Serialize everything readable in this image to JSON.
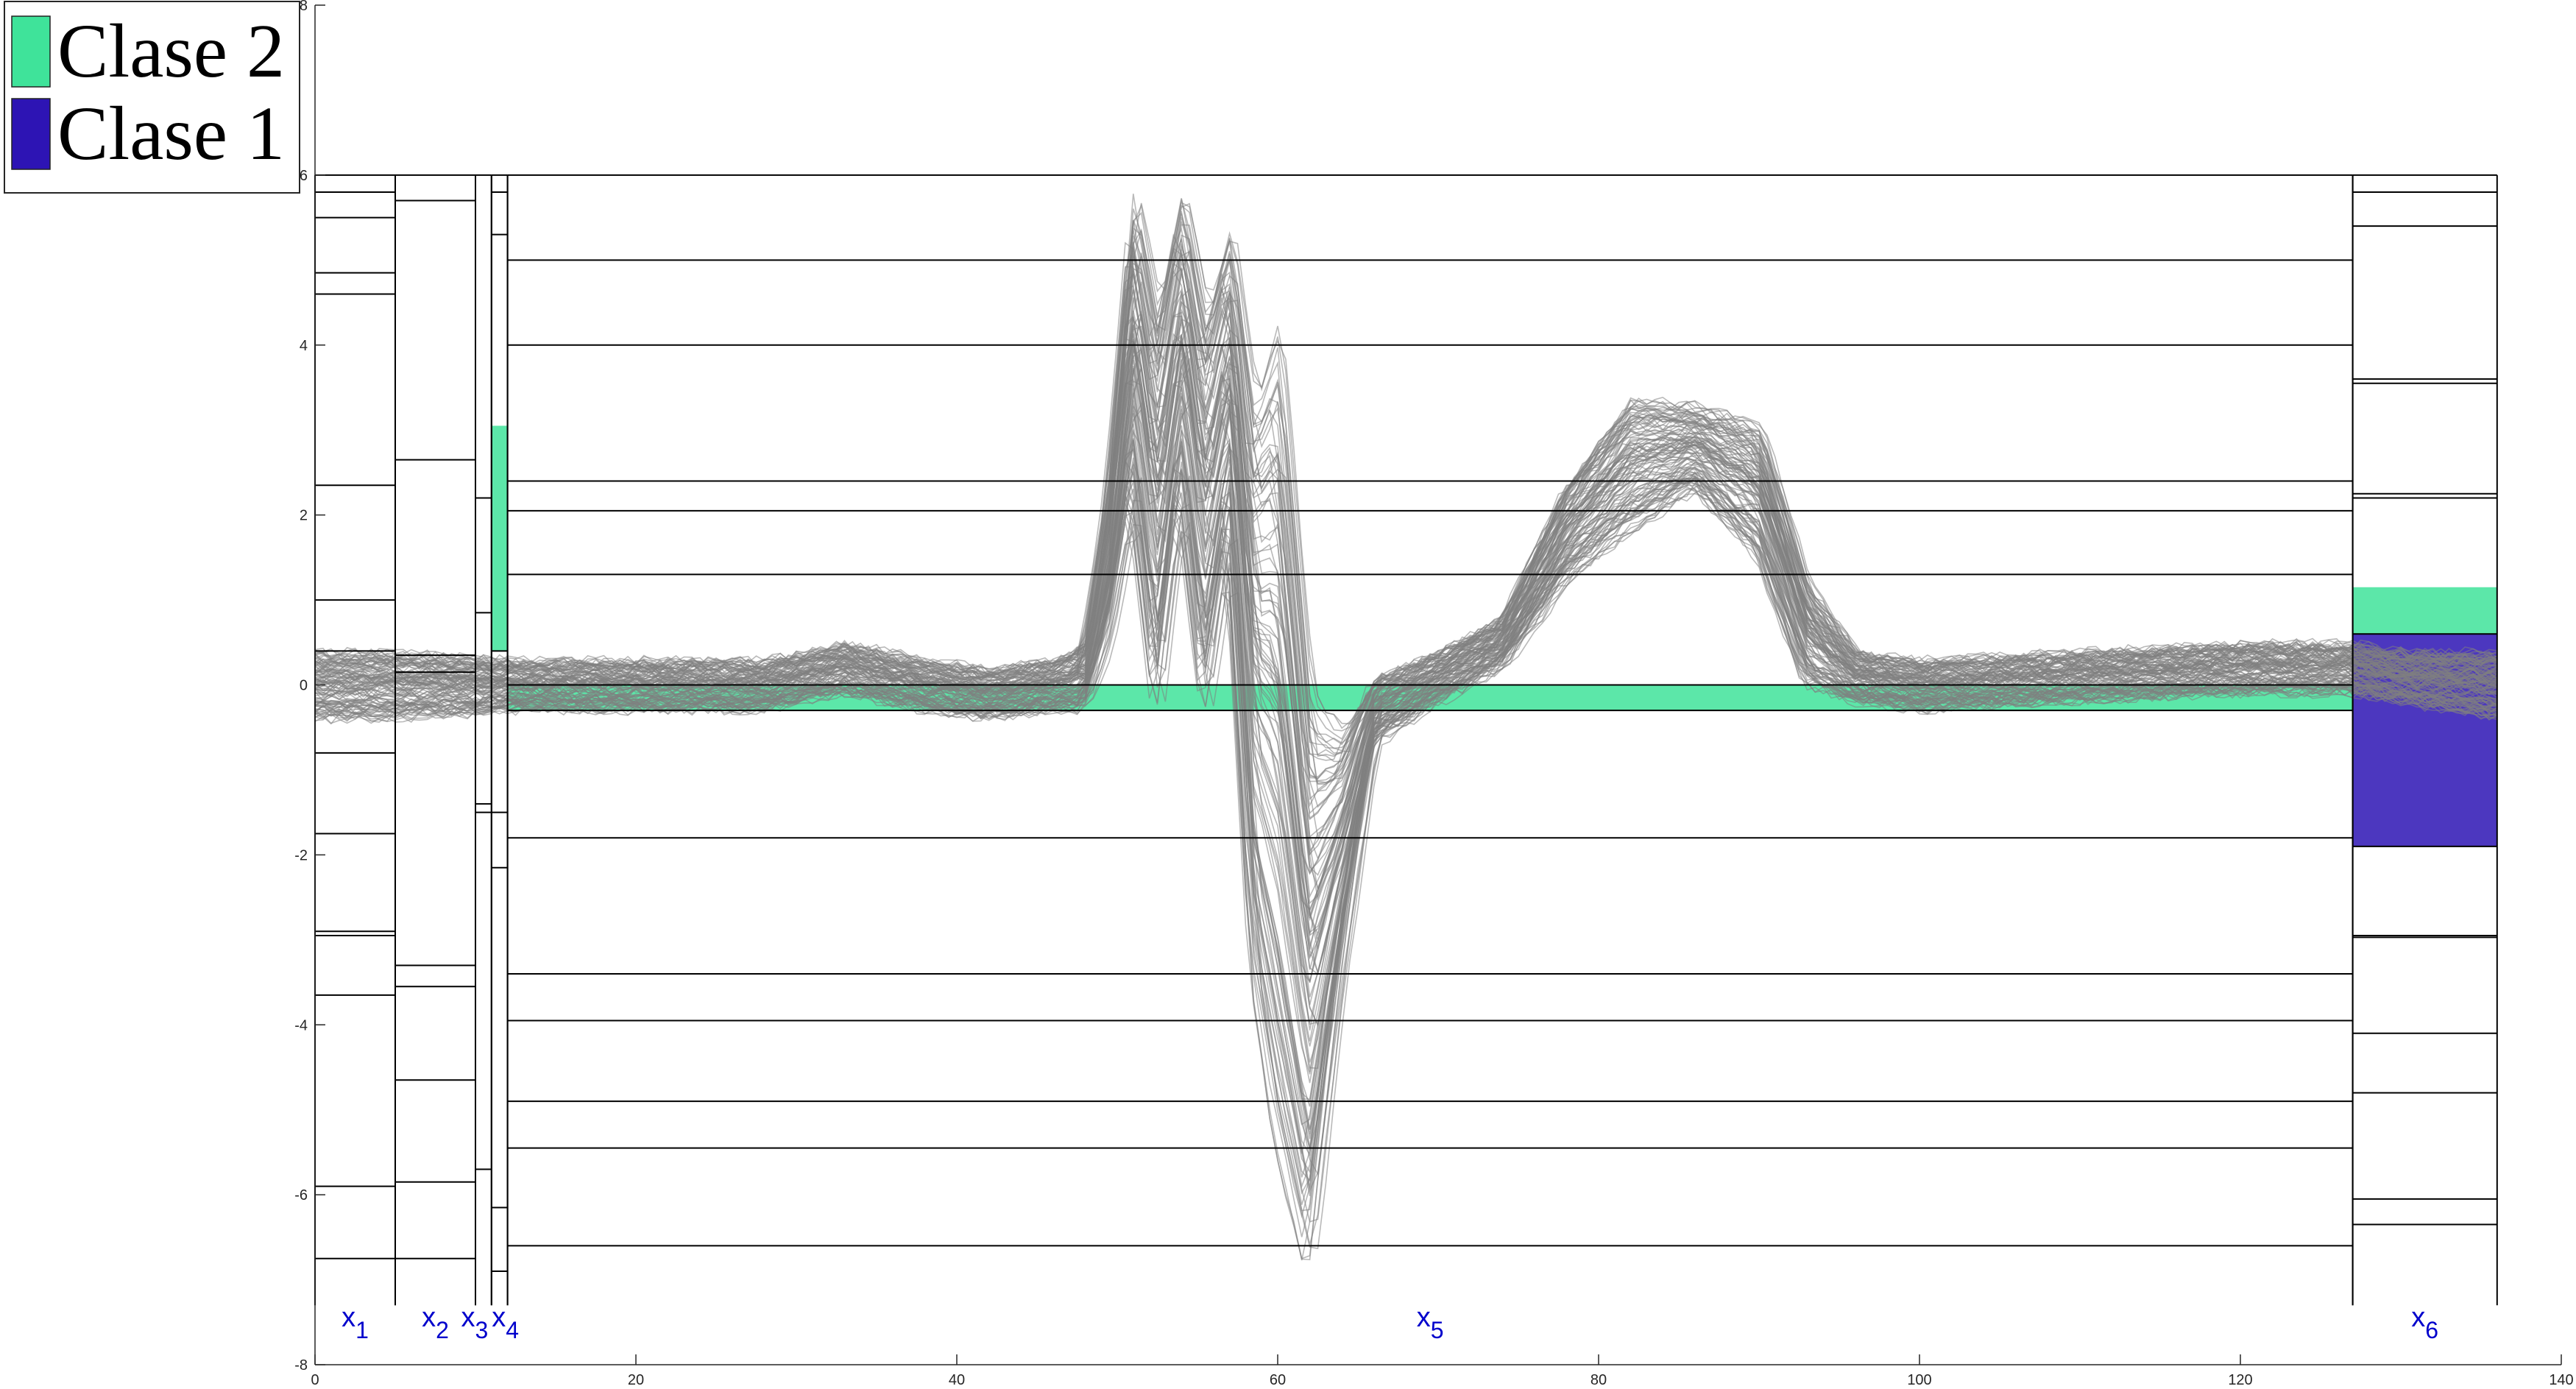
{
  "chart_data": {
    "type": "line",
    "xlim": [
      0,
      140
    ],
    "ylim": [
      -8,
      8
    ],
    "x_ticks": [
      0,
      20,
      40,
      60,
      80,
      100,
      120,
      140
    ],
    "y_ticks": [
      -8,
      -6,
      -4,
      -2,
      0,
      2,
      4,
      6,
      8
    ],
    "grid": false,
    "line_color": "#808080",
    "legend": {
      "placement": "top-left",
      "entries": [
        {
          "label": "Clase 2",
          "color": "#3fe39a"
        },
        {
          "label": "Clase 1",
          "color": "#2d14b4"
        }
      ]
    },
    "profile": {
      "x": [
        0,
        3,
        5,
        8,
        10,
        12,
        20,
        28,
        33,
        38,
        42,
        46,
        48,
        49.5,
        51,
        52.5,
        54,
        55.5,
        57,
        58.5,
        60,
        62,
        64,
        66,
        70,
        74,
        78,
        82,
        86,
        90,
        93,
        96,
        100,
        110,
        120,
        127,
        130,
        136
      ],
      "y": [
        0,
        0,
        0,
        0,
        0,
        0,
        0,
        0,
        0.2,
        0,
        -0.1,
        0,
        0.1,
        1.5,
        4,
        2,
        4,
        2,
        3.5,
        0,
        -0.5,
        -3.5,
        -2,
        -0.3,
        0.1,
        0.5,
        1.8,
        2.6,
        2.8,
        2.3,
        0.6,
        0.1,
        0,
        0.1,
        0.2,
        0.2,
        0.1,
        0
      ],
      "spread": [
        0.4,
        0.4,
        0.4,
        0.35,
        0.35,
        0.3,
        0.3,
        0.3,
        0.3,
        0.3,
        0.3,
        0.3,
        0.4,
        1,
        2,
        2.5,
        2,
        2.5,
        2,
        3.5,
        5,
        3.5,
        1.5,
        0.4,
        0.3,
        0.3,
        0.6,
        0.8,
        0.5,
        0.8,
        0.6,
        0.3,
        0.3,
        0.3,
        0.3,
        0.3,
        0.3,
        0.4
      ],
      "max": 6.0,
      "min": -7.2,
      "n_lines": 110
    },
    "variables": [
      {
        "name": "x1",
        "label": "x",
        "subscript": "1",
        "range": [
          0,
          5
        ],
        "thresholds": [
          5.8,
          5.5,
          4.85,
          4.6,
          2.35,
          1.0,
          0.4,
          -0.8,
          -1.75,
          -2.9,
          -2.95,
          -3.65,
          -5.9,
          -6.75
        ]
      },
      {
        "name": "x2",
        "label": "x",
        "subscript": "2",
        "range": [
          5,
          10
        ],
        "thresholds": [
          5.7,
          2.65,
          0.35,
          0.15,
          -3.3,
          -3.55,
          -4.65,
          -5.85,
          -6.75
        ]
      },
      {
        "name": "x3",
        "label": "x",
        "subscript": "3",
        "range": [
          10,
          11
        ],
        "thresholds": [
          2.2,
          0.85,
          -1.4,
          -1.5,
          -5.7
        ]
      },
      {
        "name": "x4",
        "label": "x",
        "subscript": "4",
        "range": [
          11,
          12
        ],
        "thresholds": [
          5.8,
          5.3,
          0.4,
          -1.5,
          -2.15,
          -6.15,
          -6.9
        ],
        "bands": [
          {
            "from": 0.4,
            "to": 3.05,
            "class": "Clase 2"
          }
        ]
      },
      {
        "name": "x5",
        "label": "x",
        "subscript": "5",
        "range": [
          12,
          127
        ],
        "thresholds": [
          5.0,
          4.0,
          2.4,
          2.05,
          1.3,
          0.0,
          -0.3,
          -1.8,
          -3.4,
          -3.95,
          -4.9,
          -5.45,
          -6.6
        ],
        "bands": [
          {
            "from": -0.3,
            "to": 0.0,
            "class": "Clase 2"
          }
        ]
      },
      {
        "name": "x6",
        "label": "x",
        "subscript": "6",
        "range": [
          127,
          136
        ],
        "thresholds": [
          5.8,
          5.4,
          3.6,
          3.55,
          2.25,
          2.2,
          0.6,
          -1.9,
          -2.95,
          -2.97,
          -4.1,
          -4.8,
          -6.05,
          -6.35
        ],
        "bands": [
          {
            "from": 0.6,
            "to": 1.15,
            "class": "Clase 2"
          },
          {
            "from": -1.9,
            "to": 0.6,
            "class": "Clase 1"
          }
        ]
      }
    ]
  }
}
